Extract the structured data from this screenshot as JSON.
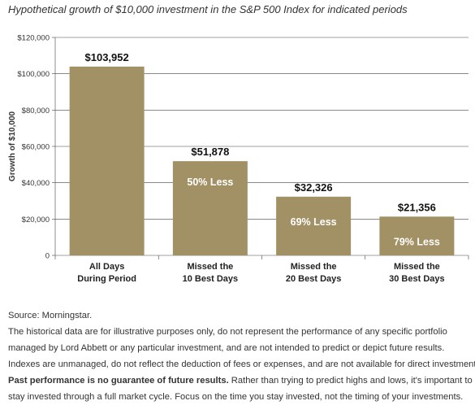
{
  "title": "Hypothetical growth of $10,000 investment in the S&P 500 Index for indicated periods",
  "chart_data": {
    "type": "bar",
    "ylabel": "Growth of $10,000",
    "xlabel": "",
    "ylim": [
      0,
      120000
    ],
    "yticks": [
      0,
      20000,
      40000,
      60000,
      80000,
      100000,
      120000
    ],
    "ytick_labels": [
      "0",
      "$20,000",
      "$40,000",
      "$60,000",
      "$80,000",
      "$100,000",
      "$120,000"
    ],
    "grid": true,
    "categories": [
      [
        "All Days",
        "During Period"
      ],
      [
        "Missed the",
        "10 Best Days"
      ],
      [
        "Missed the",
        "20 Best Days"
      ],
      [
        "Missed the",
        "30 Best Days"
      ]
    ],
    "values": [
      103952,
      51878,
      32326,
      21356
    ],
    "value_labels": [
      "$103,952",
      "$51,878",
      "$32,326",
      "$21,356"
    ],
    "inner_labels": [
      "",
      "50% Less",
      "69% Less",
      "79% Less"
    ],
    "bar_color": "#a39166"
  },
  "notes": {
    "source": "Source: Morningstar.",
    "line1": "The historical data are for illustrative purposes only, do not represent the performance of any specific portfolio",
    "line2": "managed by Lord Abbett or any particular investment, and are not intended to predict or depict future results.",
    "line3": "Indexes are unmanaged, do not reflect the deduction of fees or expenses, and are not available for direct investment.",
    "line4_bold": "Past performance is no guarantee of future results.",
    "line4_rest": " Rather than trying to predict highs and lows, it's important to",
    "line5": "stay invested through a full market cycle. Focus on the time you stay invested, not the timing of your investments."
  }
}
